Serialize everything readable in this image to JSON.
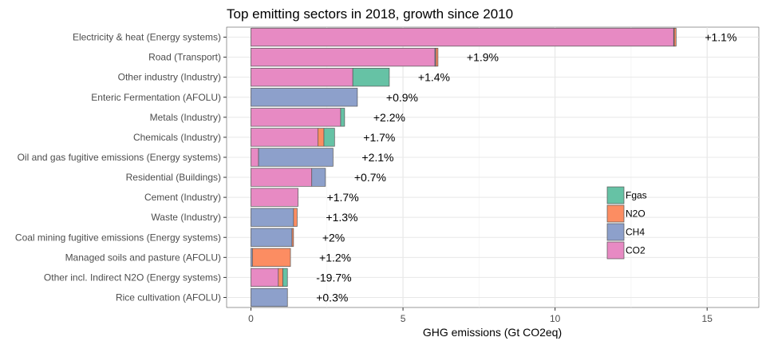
{
  "chart_data": {
    "type": "bar",
    "orientation": "horizontal",
    "stacked": true,
    "title": "Top emitting sectors in 2018, growth since 2010",
    "xlabel": "GHG emissions (Gt CO2eq)",
    "ylabel": "",
    "xlim": [
      -0.8,
      16.7
    ],
    "xticks": [
      0,
      5,
      10,
      15
    ],
    "grid": true,
    "legend_position": "right",
    "categories": [
      "Electricity & heat (Energy systems)",
      "Road  (Transport)",
      "Other industry (Industry)",
      "Enteric Fermentation (AFOLU)",
      "Metals (Industry)",
      "Chemicals (Industry)",
      "Oil and gas fugitive emissions (Energy systems)",
      "Residential (Buildings)",
      "Cement (Industry)",
      "Waste (Industry)",
      "Coal mining fugitive emissions (Energy systems)",
      "Managed soils and pasture (AFOLU)",
      "Other incl. Indirect N2O (Energy systems)",
      "Rice cultivation (AFOLU)"
    ],
    "series": [
      {
        "name": "CO2",
        "color": "#e78ac3",
        "values": [
          13.9,
          6.05,
          3.35,
          0.0,
          2.95,
          2.2,
          0.25,
          2.0,
          1.55,
          0.0,
          0.0,
          0.0,
          0.9,
          0.0
        ]
      },
      {
        "name": "CH4",
        "color": "#8da0cb",
        "values": [
          0.02,
          0.03,
          0.0,
          3.5,
          0.0,
          0.0,
          2.45,
          0.45,
          0.0,
          1.4,
          1.35,
          0.05,
          0.0,
          1.2
        ]
      },
      {
        "name": "N2O",
        "color": "#fc8d62",
        "values": [
          0.06,
          0.07,
          0.0,
          0.0,
          0.0,
          0.2,
          0.0,
          0.0,
          0.0,
          0.12,
          0.05,
          1.25,
          0.15,
          0.0
        ]
      },
      {
        "name": "Fgas",
        "color": "#66c2a5",
        "values": [
          0.0,
          0.0,
          1.2,
          0.0,
          0.13,
          0.35,
          0.0,
          0.0,
          0.0,
          0.0,
          0.0,
          0.0,
          0.15,
          0.0
        ]
      }
    ],
    "growth_labels": [
      "+1.1%",
      "+1.9%",
      "+1.4%",
      "+0.9%",
      "+2.2%",
      "+1.7%",
      "+2.1%",
      "+0.7%",
      "+1.7%",
      "+1.3%",
      "+2%",
      "+1.2%",
      "-19.7%",
      "+0.3%"
    ],
    "legend_order": [
      "Fgas",
      "N2O",
      "CH4",
      "CO2"
    ]
  }
}
